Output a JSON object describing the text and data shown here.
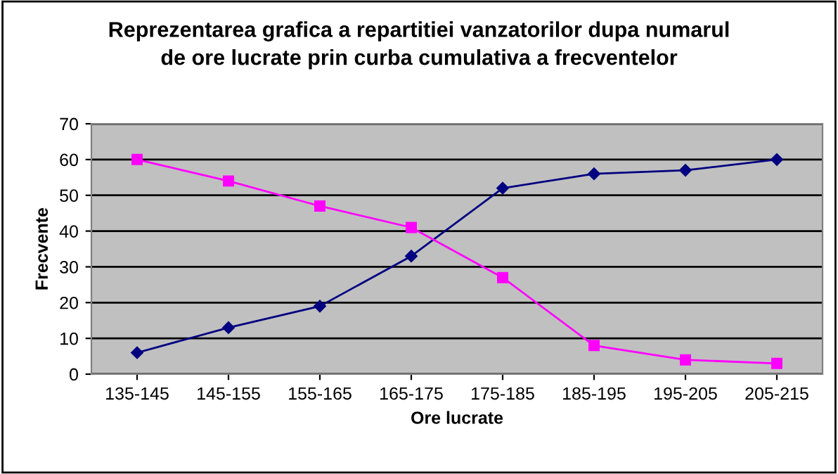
{
  "chart_data": {
    "type": "line",
    "title": "Reprezentarea grafica a repartitiei vanzatorilor dupa numarul\nde ore lucrate prin curba cumulativa a frecventelor",
    "xlabel": "Ore lucrate",
    "ylabel": "Frecvente",
    "categories": [
      "135-145",
      "145-155",
      "155-165",
      "165-175",
      "175-185",
      "185-195",
      "195-205",
      "205-215"
    ],
    "series": [
      {
        "color": "#000080",
        "marker": "diamond",
        "values": [
          6,
          13,
          19,
          33,
          52,
          56,
          57,
          60
        ]
      },
      {
        "color": "#ff00ff",
        "marker": "square",
        "values": [
          60,
          54,
          47,
          41,
          27,
          8,
          4,
          3
        ]
      }
    ],
    "ylim": [
      0,
      70
    ],
    "yticks": [
      0,
      10,
      20,
      30,
      40,
      50,
      60,
      70
    ],
    "grid": "y",
    "legend": false
  }
}
